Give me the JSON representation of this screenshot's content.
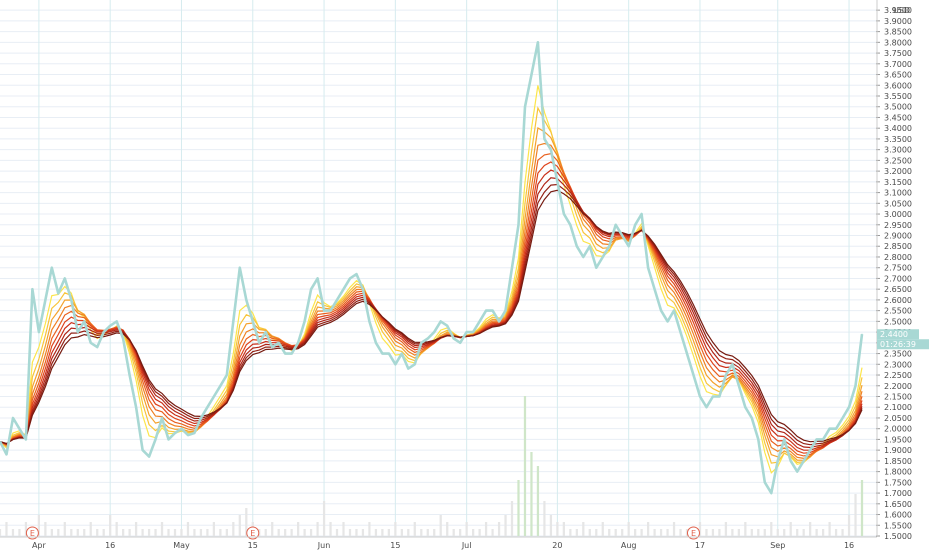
{
  "chart_data": {
    "type": "line",
    "currency": "USD",
    "y_axis": {
      "ylim": [
        1.5,
        3.96
      ],
      "tick_labels": [
        "1.5000",
        "1.5500",
        "1.6000",
        "1.6500",
        "1.7000",
        "1.7500",
        "1.8000",
        "1.8500",
        "1.9000",
        "1.9500",
        "2.0000",
        "2.0500",
        "2.1000",
        "2.1500",
        "2.2000",
        "2.2500",
        "2.3000",
        "2.3500",
        "2.4000",
        "2.4500",
        "2.5000",
        "2.5500",
        "2.6000",
        "2.6500",
        "2.7000",
        "2.7500",
        "2.8000",
        "2.8500",
        "2.9000",
        "2.9500",
        "3.0000",
        "3.0500",
        "3.1000",
        "3.1500",
        "3.2000",
        "3.2500",
        "3.3000",
        "3.3500",
        "3.4000",
        "3.4500",
        "3.5000",
        "3.5500",
        "3.6000",
        "3.6500",
        "3.7000",
        "3.7500",
        "3.8000",
        "3.8500",
        "3.9000",
        "3.9500"
      ],
      "position": "right"
    },
    "x_axis": {
      "tick_labels": [
        "Apr",
        "16",
        "May",
        "15",
        "Jun",
        "15",
        "Jul",
        "20",
        "Aug",
        "17",
        "Sep",
        "16"
      ],
      "tick_index": [
        6,
        17,
        28,
        39,
        50,
        61,
        72,
        86,
        97,
        108,
        120,
        131
      ]
    },
    "earnings_markers": [
      {
        "label": "E",
        "index": 5
      },
      {
        "label": "E",
        "index": 39
      },
      {
        "label": "E",
        "index": 107
      }
    ],
    "last_price": {
      "value": "2.4400",
      "timer": "01:26:39",
      "color": "#a8d8d4"
    },
    "price_series": {
      "color": "#a8d8d4",
      "values": [
        1.94,
        1.88,
        2.05,
        2.0,
        1.95,
        2.65,
        2.45,
        2.6,
        2.75,
        2.63,
        2.7,
        2.6,
        2.45,
        2.5,
        2.4,
        2.38,
        2.45,
        2.48,
        2.5,
        2.42,
        2.25,
        2.1,
        1.9,
        1.87,
        1.95,
        2.05,
        1.95,
        1.98,
        2.0,
        1.97,
        1.98,
        2.05,
        2.1,
        2.15,
        2.2,
        2.25,
        2.5,
        2.75,
        2.6,
        2.5,
        2.4,
        2.45,
        2.38,
        2.4,
        2.35,
        2.35,
        2.4,
        2.5,
        2.65,
        2.7,
        2.55,
        2.55,
        2.6,
        2.65,
        2.7,
        2.72,
        2.65,
        2.5,
        2.4,
        2.35,
        2.35,
        2.3,
        2.35,
        2.28,
        2.3,
        2.4,
        2.42,
        2.45,
        2.5,
        2.48,
        2.42,
        2.4,
        2.45,
        2.45,
        2.5,
        2.55,
        2.55,
        2.5,
        2.55,
        2.75,
        2.95,
        3.5,
        3.65,
        3.8,
        3.35,
        3.3,
        3.15,
        3.0,
        2.95,
        2.85,
        2.8,
        2.85,
        2.75,
        2.8,
        2.85,
        2.95,
        2.9,
        2.85,
        2.95,
        3.0,
        2.75,
        2.65,
        2.55,
        2.5,
        2.55,
        2.45,
        2.35,
        2.25,
        2.15,
        2.1,
        2.15,
        2.15,
        2.25,
        2.3,
        2.2,
        2.1,
        2.05,
        1.95,
        1.75,
        1.7,
        1.85,
        1.95,
        1.85,
        1.8,
        1.85,
        1.9,
        1.95,
        1.95,
        2.0,
        2.0,
        2.05,
        2.1,
        2.2,
        2.44
      ]
    },
    "ribbon_colors": [
      "#fce54a",
      "#f8c43a",
      "#f4a22d",
      "#ef8024",
      "#e9611f",
      "#df441c",
      "#c9301a",
      "#b02416",
      "#932014",
      "#761b11"
    ],
    "ribbon_spans": [
      3,
      4,
      5,
      6,
      7,
      8,
      9,
      10,
      11,
      12
    ],
    "volume": {
      "color": "#e6e6e6",
      "spike_color": "#cfe6c8",
      "values": [
        1,
        2,
        1,
        1,
        2,
        1,
        3,
        2,
        1,
        1,
        2,
        1,
        1,
        1,
        2,
        1,
        1,
        3,
        2,
        1,
        1,
        2,
        1,
        1,
        1,
        2,
        1,
        1,
        1,
        2,
        1,
        1,
        1,
        2,
        1,
        1,
        2,
        3,
        4,
        2,
        1,
        1,
        2,
        1,
        1,
        1,
        2,
        1,
        1,
        2,
        5,
        2,
        1,
        2,
        1,
        1,
        1,
        2,
        1,
        1,
        1,
        2,
        1,
        1,
        2,
        1,
        1,
        1,
        3,
        2,
        1,
        1,
        2,
        1,
        1,
        2,
        1,
        2,
        3,
        5,
        8,
        20,
        12,
        10,
        5,
        3,
        2,
        2,
        1,
        1,
        2,
        1,
        1,
        2,
        1,
        1,
        1,
        2,
        1,
        1,
        2,
        1,
        1,
        1,
        2,
        1,
        1,
        1,
        2,
        1,
        1,
        1,
        2,
        1,
        1,
        2,
        1,
        1,
        1,
        2,
        1,
        1,
        2,
        1,
        1,
        2,
        1,
        1,
        2,
        1,
        1,
        3,
        6,
        8
      ]
    }
  },
  "colors": {
    "grid": "#e8eef5",
    "vertical_grid": "#d6ecef",
    "axis_text": "#4a4a4a"
  }
}
